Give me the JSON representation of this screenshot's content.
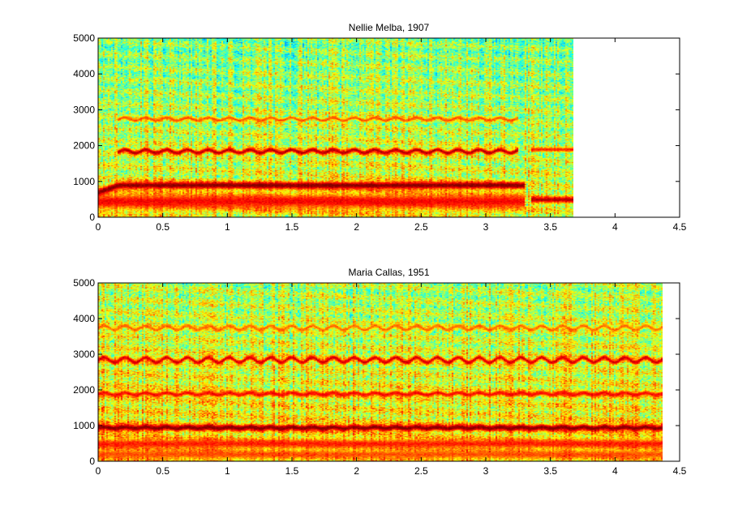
{
  "chart_data": [
    {
      "type": "heatmap",
      "title": "Nellie Melba, 1907",
      "xlabel": "",
      "ylabel": "",
      "xlim": [
        0,
        4.5
      ],
      "ylim": [
        0,
        5000
      ],
      "xticks": [
        "0",
        "0.5",
        "1",
        "1.5",
        "2",
        "2.5",
        "3",
        "3.5",
        "4",
        "4.5"
      ],
      "yticks": [
        "0",
        "1000",
        "2000",
        "3000",
        "4000",
        "5000"
      ],
      "data_extent_x": [
        0,
        3.68
      ],
      "colormap": "jet",
      "background_level": 0.5,
      "harmonic_bands": [
        {
          "start_freq": 700,
          "freq": 900,
          "width": 110,
          "level": 1.0,
          "vibrato": 0,
          "t_start": 0.0,
          "t_end": 3.3,
          "onset_t": 0.15
        },
        {
          "freq": 1850,
          "width": 70,
          "level": 0.95,
          "vibrato": 45,
          "t_start": 0.15,
          "t_end": 3.25
        },
        {
          "freq": 2750,
          "width": 55,
          "level": 0.8,
          "vibrato": 40,
          "t_start": 0.15,
          "t_end": 3.25
        },
        {
          "freq": 450,
          "width": 220,
          "level": 0.88,
          "vibrato": 0,
          "t_start": 0.0,
          "t_end": 3.3
        },
        {
          "freq": 500,
          "width": 90,
          "level": 0.95,
          "vibrato": 0,
          "t_start": 3.35,
          "t_end": 3.68
        },
        {
          "freq": 1900,
          "width": 60,
          "level": 0.85,
          "vibrato": 0,
          "t_start": 3.35,
          "t_end": 3.68
        }
      ]
    },
    {
      "type": "heatmap",
      "title": "Maria Callas, 1951",
      "xlabel": "",
      "ylabel": "",
      "xlim": [
        0,
        4.5
      ],
      "ylim": [
        0,
        5000
      ],
      "xticks": [
        "0",
        "0.5",
        "1",
        "1.5",
        "2",
        "2.5",
        "3",
        "3.5",
        "4",
        "4.5"
      ],
      "yticks": [
        "0",
        "1000",
        "2000",
        "3000",
        "4000",
        "5000"
      ],
      "data_extent_x": [
        0,
        4.37
      ],
      "colormap": "jet",
      "background_level": 0.55,
      "harmonic_bands": [
        {
          "freq": 950,
          "width": 90,
          "level": 1.0,
          "vibrato": 20,
          "t_start": 0.0,
          "t_end": 4.37
        },
        {
          "freq": 1900,
          "width": 70,
          "level": 0.88,
          "vibrato": 30,
          "t_start": 0.0,
          "t_end": 4.37
        },
        {
          "freq": 2850,
          "width": 70,
          "level": 0.92,
          "vibrato": 70,
          "t_start": 0.0,
          "t_end": 4.37
        },
        {
          "freq": 3750,
          "width": 60,
          "level": 0.78,
          "vibrato": 60,
          "t_start": 0.0,
          "t_end": 4.37
        },
        {
          "freq": 500,
          "width": 130,
          "level": 0.85,
          "vibrato": 0,
          "t_start": 0.0,
          "t_end": 4.37
        },
        {
          "freq": 200,
          "width": 120,
          "level": 0.8,
          "vibrato": 0,
          "t_start": 0.0,
          "t_end": 4.37
        }
      ]
    }
  ]
}
